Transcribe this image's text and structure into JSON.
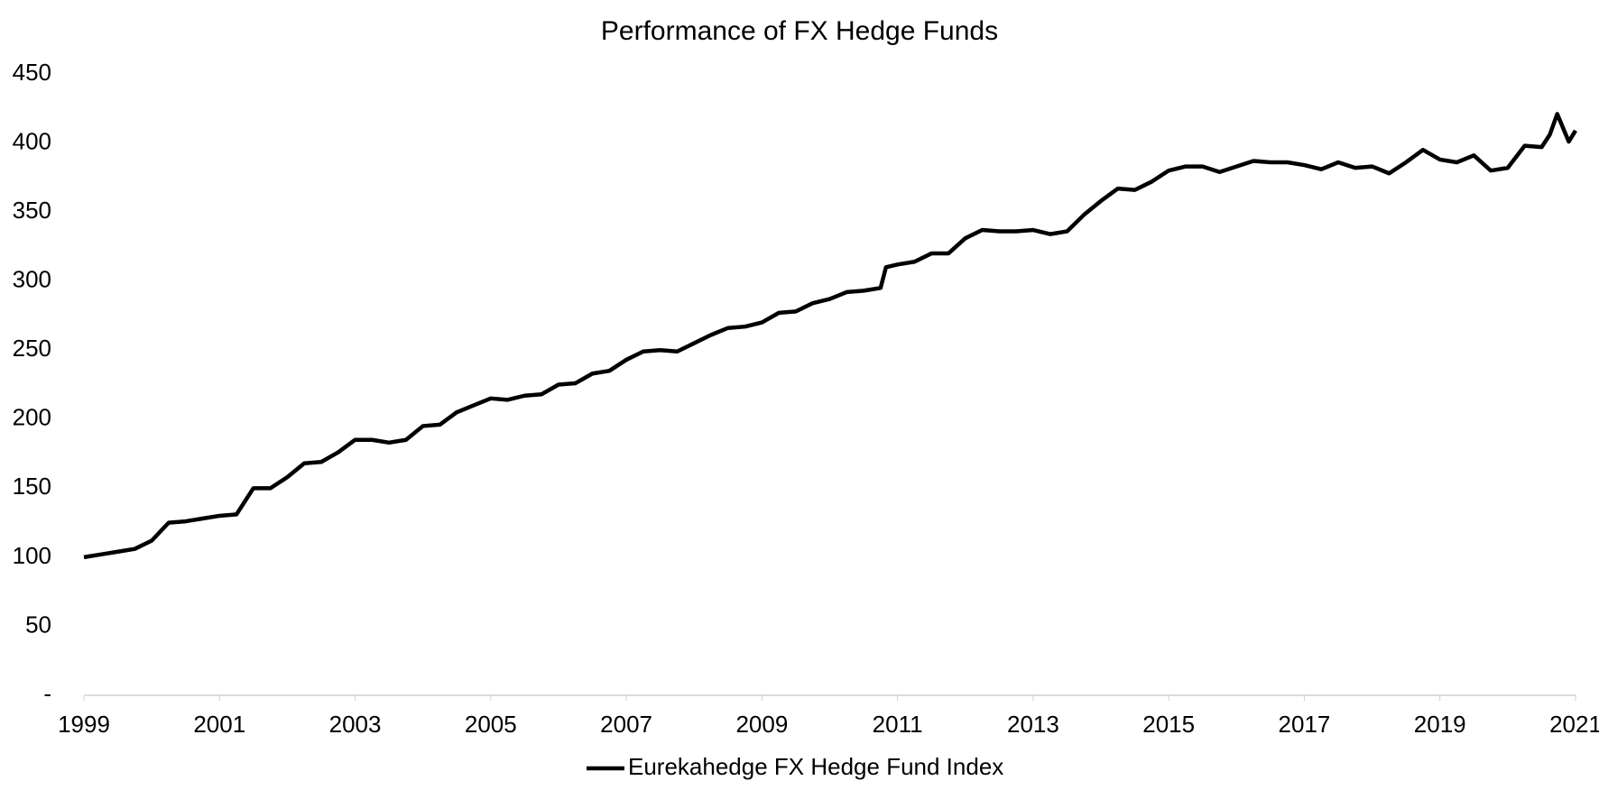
{
  "chart_data": {
    "type": "line",
    "title": "Performance of FX Hedge Funds",
    "x": [
      1999.0,
      1999.25,
      1999.5,
      1999.75,
      2000.0,
      2000.25,
      2000.5,
      2000.75,
      2001.0,
      2001.25,
      2001.5,
      2001.75,
      2002.0,
      2002.25,
      2002.5,
      2002.75,
      2003.0,
      2003.25,
      2003.5,
      2003.75,
      2004.0,
      2004.25,
      2004.5,
      2004.75,
      2005.0,
      2005.25,
      2005.5,
      2005.75,
      2006.0,
      2006.25,
      2006.5,
      2006.75,
      2007.0,
      2007.25,
      2007.5,
      2007.75,
      2008.0,
      2008.25,
      2008.5,
      2008.75,
      2009.0,
      2009.25,
      2009.5,
      2009.75,
      2010.0,
      2010.25,
      2010.5,
      2010.75,
      2010.83,
      2011.0,
      2011.25,
      2011.5,
      2011.75,
      2012.0,
      2012.25,
      2012.5,
      2012.75,
      2013.0,
      2013.25,
      2013.5,
      2013.75,
      2014.0,
      2014.25,
      2014.5,
      2014.75,
      2015.0,
      2015.25,
      2015.5,
      2015.75,
      2016.0,
      2016.25,
      2016.5,
      2016.75,
      2017.0,
      2017.25,
      2017.5,
      2017.75,
      2018.0,
      2018.25,
      2018.5,
      2018.75,
      2019.0,
      2019.25,
      2019.5,
      2019.75,
      2020.0,
      2020.25,
      2020.5,
      2020.62,
      2020.73,
      2020.9,
      2021.0
    ],
    "series": [
      {
        "name": "Eurekahedge FX Hedge Fund Index",
        "color": "#000000",
        "values": [
          100,
          102,
          104,
          106,
          112,
          125,
          126,
          128,
          130,
          131,
          150,
          150,
          158,
          168,
          169,
          176,
          185,
          185,
          183,
          185,
          195,
          196,
          205,
          210,
          215,
          214,
          217,
          218,
          225,
          226,
          233,
          235,
          243,
          249,
          250,
          249,
          255,
          261,
          266,
          267,
          270,
          277,
          278,
          284,
          287,
          292,
          293,
          295,
          310,
          312,
          314,
          320,
          320,
          331,
          337,
          336,
          336,
          337,
          334,
          336,
          348,
          358,
          367,
          366,
          372,
          380,
          383,
          383,
          379,
          383,
          387,
          386,
          386,
          384,
          381,
          386,
          382,
          383,
          378,
          386,
          395,
          388,
          386,
          391,
          380,
          382,
          398,
          397,
          406,
          421,
          401,
          409
        ]
      }
    ],
    "xlim": [
      1999,
      2021
    ],
    "xticks": [
      1999,
      2001,
      2003,
      2005,
      2007,
      2009,
      2011,
      2013,
      2015,
      2017,
      2019,
      2021
    ],
    "ylim": [
      0,
      450
    ],
    "yticks": [
      {
        "value": 0,
        "label": "-"
      },
      50,
      100,
      150,
      200,
      250,
      300,
      350,
      400,
      450
    ],
    "grid": false,
    "legend": "bottom"
  }
}
